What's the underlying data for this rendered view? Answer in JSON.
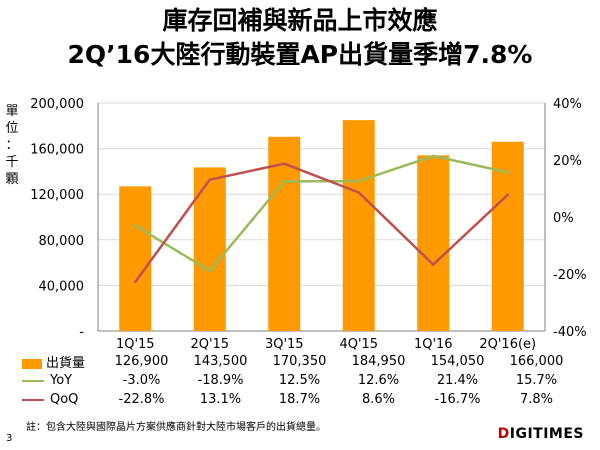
{
  "title_line1": "庫存回補與新品上市效應",
  "title_line2": "2Q’16大陸行動裝置AP出貨量季增7.8%",
  "ylabel_chars": [
    "單",
    "位",
    "：",
    "千",
    "顆"
  ],
  "colors": {
    "bar": "#ff9900",
    "yoy": "#9bbb59",
    "qoq": "#c0504d"
  },
  "chart_data": {
    "type": "bar",
    "categories": [
      "1Q'15",
      "2Q'15",
      "3Q'15",
      "4Q'15",
      "1Q'16",
      "2Q'16(e)"
    ],
    "left_axis": {
      "ylim": [
        0,
        200000
      ],
      "ticks": [
        "-",
        "40,000",
        "80,000",
        "120,000",
        "160,000",
        "200,000"
      ],
      "tick_values": [
        0,
        40000,
        80000,
        120000,
        160000,
        200000
      ]
    },
    "right_axis": {
      "ylim": [
        -40,
        40
      ],
      "ticks": [
        "-40%",
        "-20%",
        "0%",
        "20%",
        "40%"
      ],
      "tick_values": [
        -40,
        -20,
        0,
        20,
        40
      ]
    },
    "grid": true,
    "series": [
      {
        "name": "出貨量",
        "kind": "bar",
        "axis": "left",
        "values": [
          126900,
          143500,
          170350,
          184950,
          154050,
          166000
        ],
        "labels": [
          "126,900",
          "143,500",
          "170,350",
          "184,950",
          "154,050",
          "166,000"
        ]
      },
      {
        "name": "YoY",
        "kind": "line",
        "axis": "right",
        "values": [
          -3.0,
          -18.9,
          12.5,
          12.6,
          21.4,
          15.7
        ],
        "labels": [
          "-3.0%",
          "-18.9%",
          "12.5%",
          "12.6%",
          "21.4%",
          "15.7%"
        ]
      },
      {
        "name": "QoQ",
        "kind": "line",
        "axis": "right",
        "values": [
          -22.8,
          13.1,
          18.7,
          8.6,
          -16.7,
          7.8
        ],
        "labels": [
          "-22.8%",
          "13.1%",
          "18.7%",
          "8.6%",
          "-16.7%",
          "7.8%"
        ]
      }
    ]
  },
  "footnote": "註：包含大陸與國際晶片方案供應商針對大陸市場客戶的出貨總量。",
  "page_number": "3",
  "logo": {
    "prefix": "D",
    "rest": "IGITIMES"
  }
}
